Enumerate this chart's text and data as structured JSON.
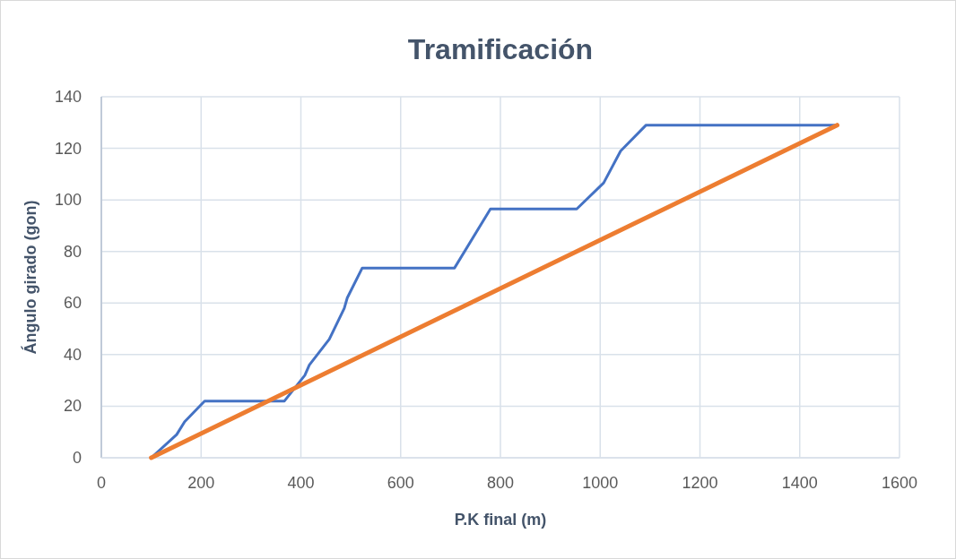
{
  "chart_data": {
    "type": "line",
    "title": "Tramificación",
    "xlabel": "P.K final (m)",
    "ylabel": "Ángulo girado (gon)",
    "xlim": [
      0,
      1600
    ],
    "xticks": [
      0,
      200,
      400,
      600,
      800,
      1000,
      1200,
      1400,
      1600
    ],
    "ylim": [
      0,
      140
    ],
    "yticks": [
      0,
      20,
      40,
      60,
      80,
      100,
      120,
      140
    ],
    "grid": true,
    "marker": "none",
    "series": [
      {
        "color": "#4472c4",
        "x": [
          100,
          151,
          167,
          207,
          367,
          408,
          417,
          457,
          487,
          493,
          523,
          708,
          780,
          953,
          1007,
          1041,
          1092,
          1475
        ],
        "values": [
          0,
          9,
          14,
          22,
          22,
          32,
          36,
          46,
          58,
          62,
          73.6,
          73.6,
          96.5,
          96.5,
          106.6,
          119,
          129,
          129
        ]
      },
      {
        "color": "#ed7d31",
        "x": [
          100,
          1475
        ],
        "values": [
          0,
          129
        ]
      }
    ]
  }
}
